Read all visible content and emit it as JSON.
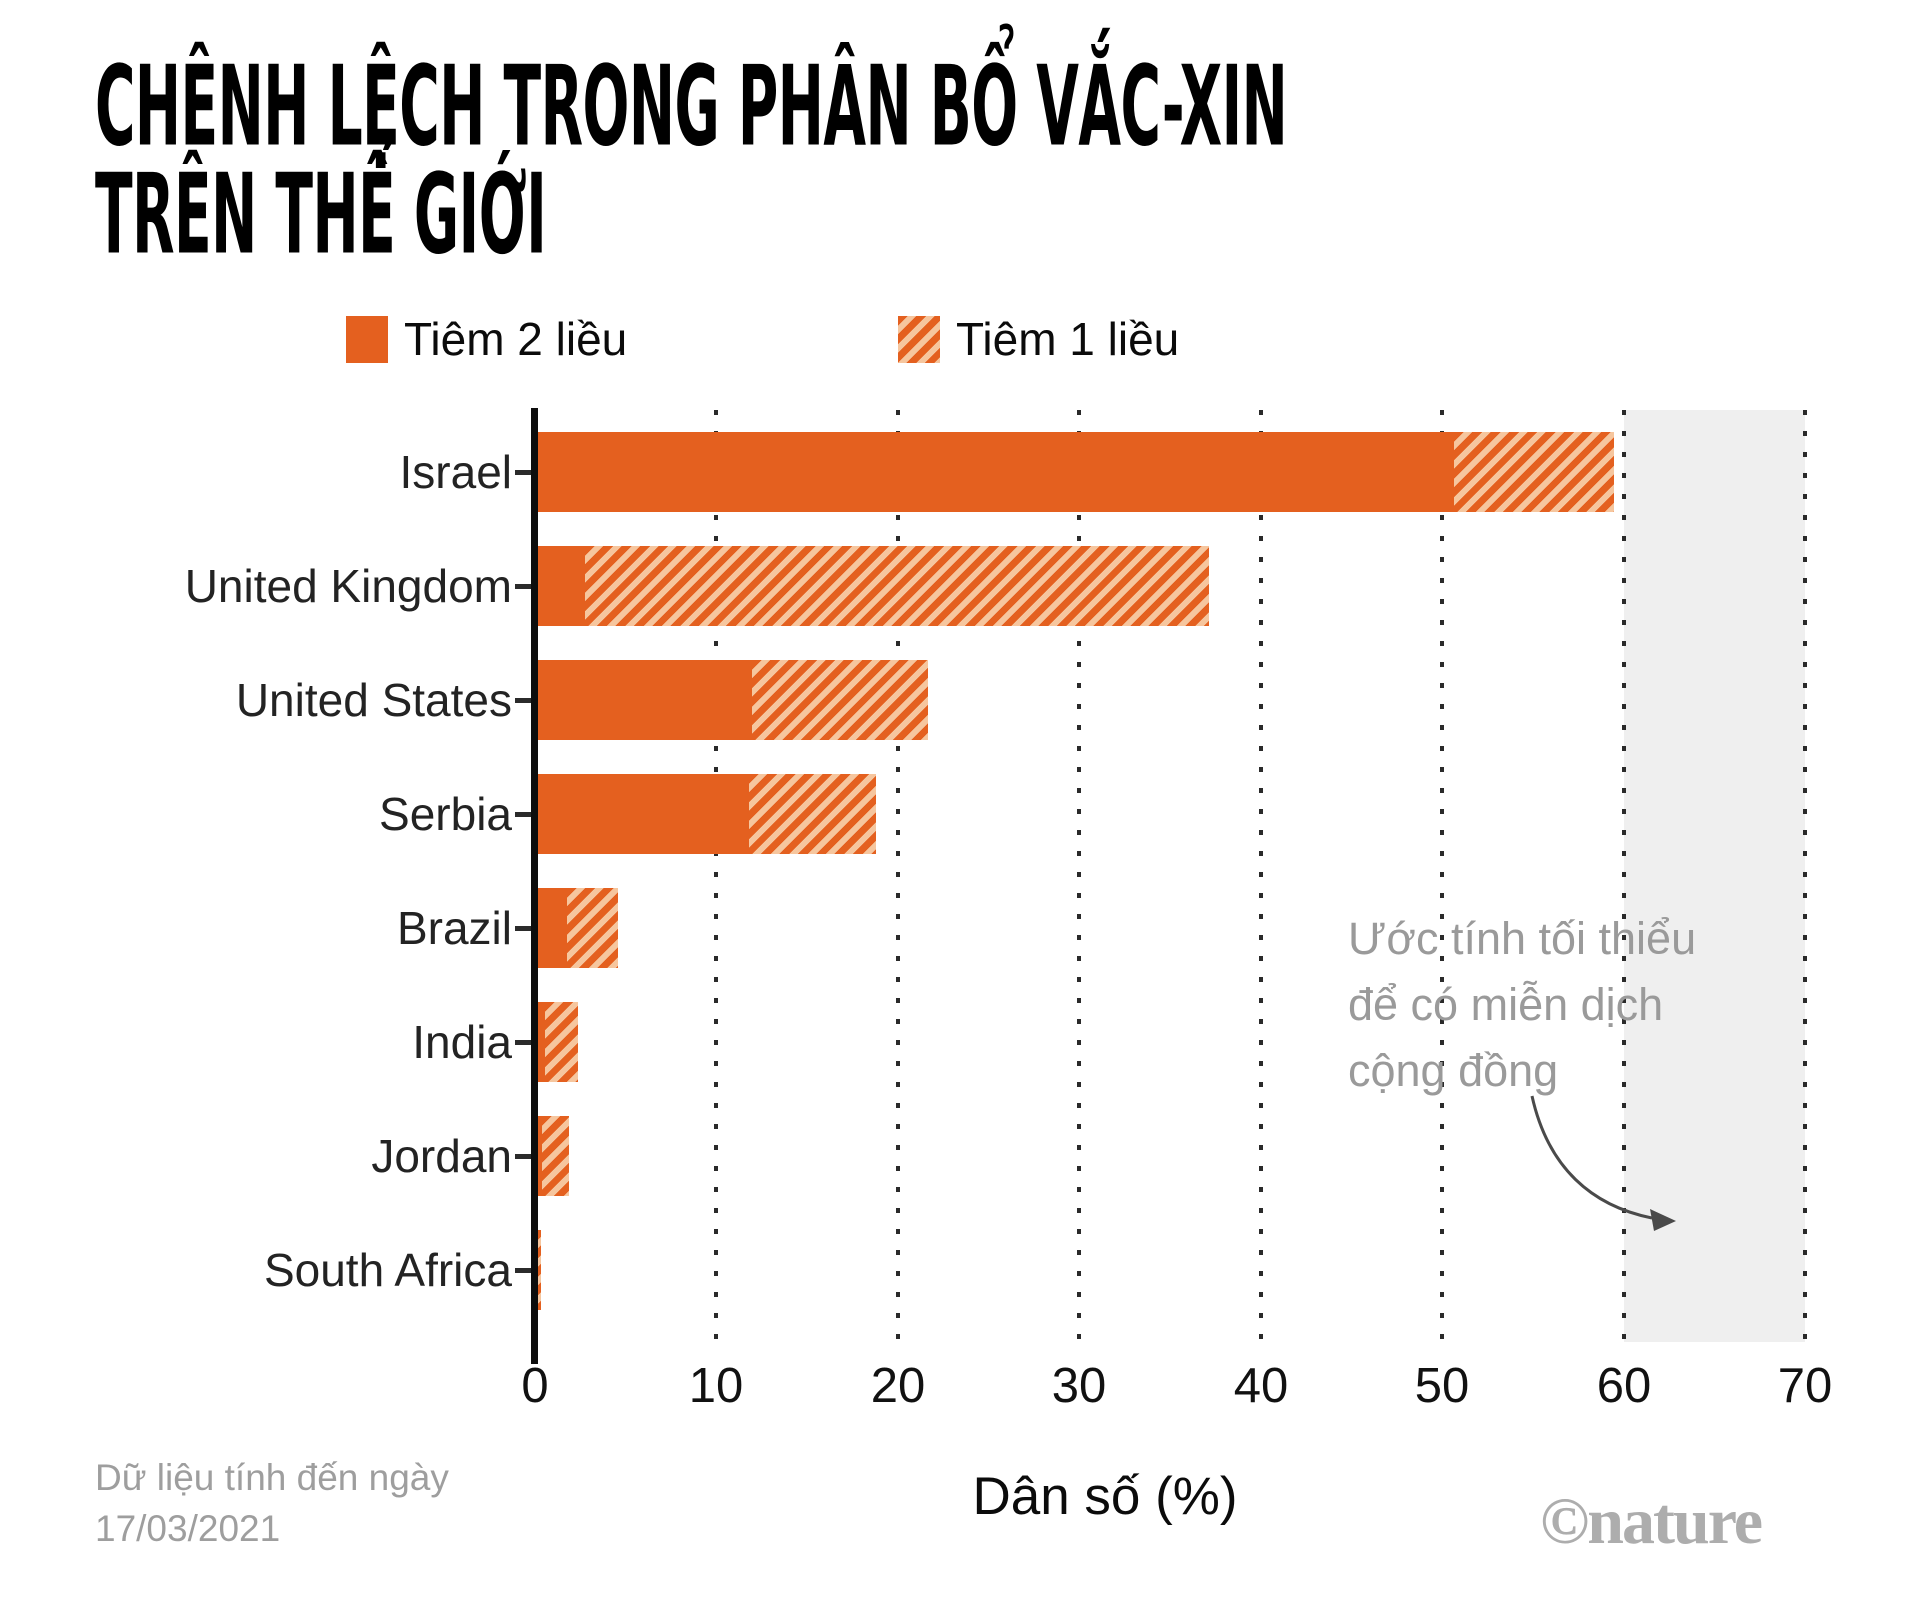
{
  "title": {
    "line1": "CHÊNH LỆCH TRONG PHÂN BỔ VẮC-XIN",
    "line2": "TRÊN THẾ GIỚI"
  },
  "legend": {
    "two_dose_label": "Tiêm 2 liều",
    "one_dose_label": "Tiêm 1 liều"
  },
  "chart_data": {
    "type": "bar",
    "orientation": "horizontal",
    "categories": [
      "Israel",
      "United Kingdom",
      "United States",
      "Serbia",
      "Brazil",
      "India",
      "Jordan",
      "South Africa"
    ],
    "series": [
      {
        "name": "Tiêm 2 liều",
        "style": "solid",
        "values": [
          50.5,
          2.6,
          11.8,
          11.6,
          1.6,
          0.4,
          0.2,
          0
        ]
      },
      {
        "name": "Tiêm 1 liều",
        "style": "hatched",
        "values": [
          8.8,
          34.4,
          9.7,
          7.0,
          2.8,
          1.8,
          1.5,
          0.15
        ]
      }
    ],
    "stacked": true,
    "xlabel": "Dân số (%)",
    "xlim": [
      0,
      70
    ],
    "xticks": [
      0,
      10,
      20,
      30,
      40,
      50,
      60,
      70
    ],
    "gridlines": "dotted-vertical",
    "legend_position": "top",
    "herd_immunity_band": {
      "from": 60,
      "to": 70
    },
    "annotation_text": "Ước tính tối thiểu để có miễn dịch cộng đồng"
  },
  "annotation": {
    "line1": "Ước tính tối thiểu",
    "line2": "để có miễn dịch",
    "line3": "cộng đồng"
  },
  "xaxis": {
    "title": "Dân số (%)"
  },
  "footer": {
    "note_line1": "Dữ liệu tính đến ngày",
    "note_line2": "17/03/2021",
    "credit": "©nature"
  },
  "colors": {
    "bar_orange": "#E4601F",
    "hatch_light": "#F6C69E",
    "band_gray": "#EFEFEF",
    "annotation_gray": "#9A9A9A",
    "footnote_gray": "#9E9E9E",
    "credit_gray": "#ADADAD"
  }
}
